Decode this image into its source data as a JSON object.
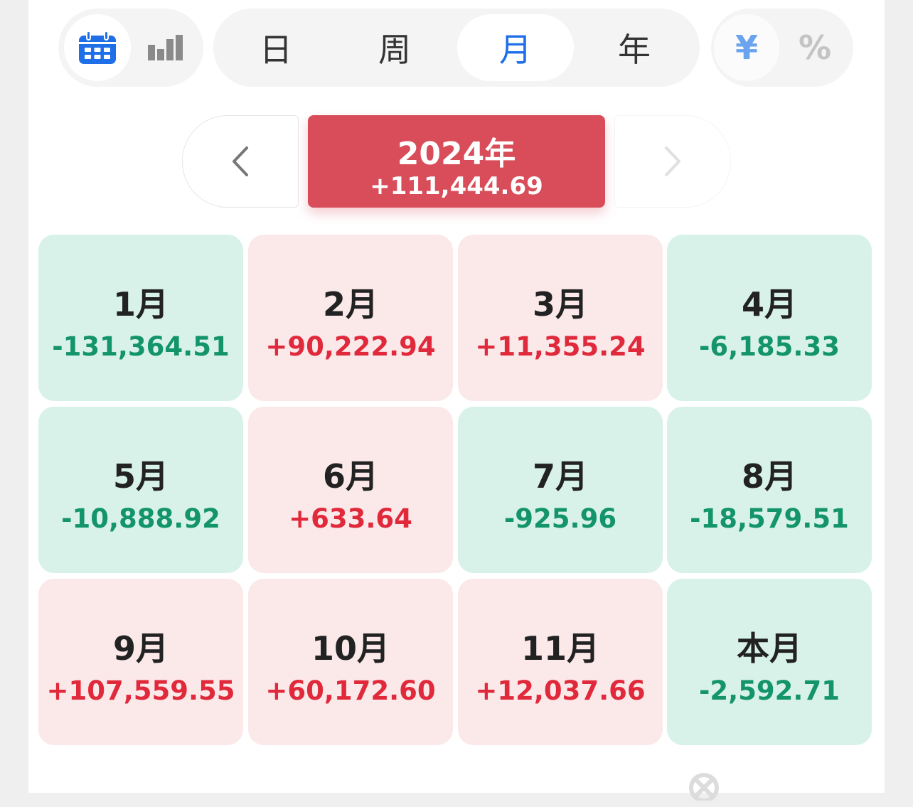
{
  "toolbar": {
    "view_modes": [
      {
        "icon": "calendar-icon",
        "active": true
      },
      {
        "icon": "bar-chart-icon",
        "active": false
      }
    ],
    "period_tabs": [
      "日",
      "周",
      "月",
      "年"
    ],
    "active_period": "月",
    "units": [
      "¥",
      "%"
    ],
    "active_unit": "¥"
  },
  "year_nav": {
    "prev_icon": "chevron-left-icon",
    "next_icon": "chevron-right-icon",
    "title": "2024年",
    "total": "+111,444.69"
  },
  "months": [
    {
      "label": "1月",
      "value": "-131,364.51",
      "trend": "down"
    },
    {
      "label": "2月",
      "value": "+90,222.94",
      "trend": "up"
    },
    {
      "label": "3月",
      "value": "+11,355.24",
      "trend": "up"
    },
    {
      "label": "4月",
      "value": "-6,185.33",
      "trend": "down"
    },
    {
      "label": "5月",
      "value": "-10,888.92",
      "trend": "down"
    },
    {
      "label": "6月",
      "value": "+633.64",
      "trend": "up"
    },
    {
      "label": "7月",
      "value": "-925.96",
      "trend": "down"
    },
    {
      "label": "8月",
      "value": "-18,579.51",
      "trend": "down"
    },
    {
      "label": "9月",
      "value": "+107,559.55",
      "trend": "up"
    },
    {
      "label": "10月",
      "value": "+60,172.60",
      "trend": "up"
    },
    {
      "label": "11月",
      "value": "+12,037.66",
      "trend": "up"
    },
    {
      "label": "本月",
      "value": "-2,592.71",
      "trend": "down"
    }
  ],
  "colors": {
    "accent_blue": "#1e6fe8",
    "year_card": "#d94d5a",
    "gain_text": "#e02a3b",
    "gain_bg": "#fbe9ea",
    "loss_text": "#14946a",
    "loss_bg": "#d8f2ea"
  }
}
